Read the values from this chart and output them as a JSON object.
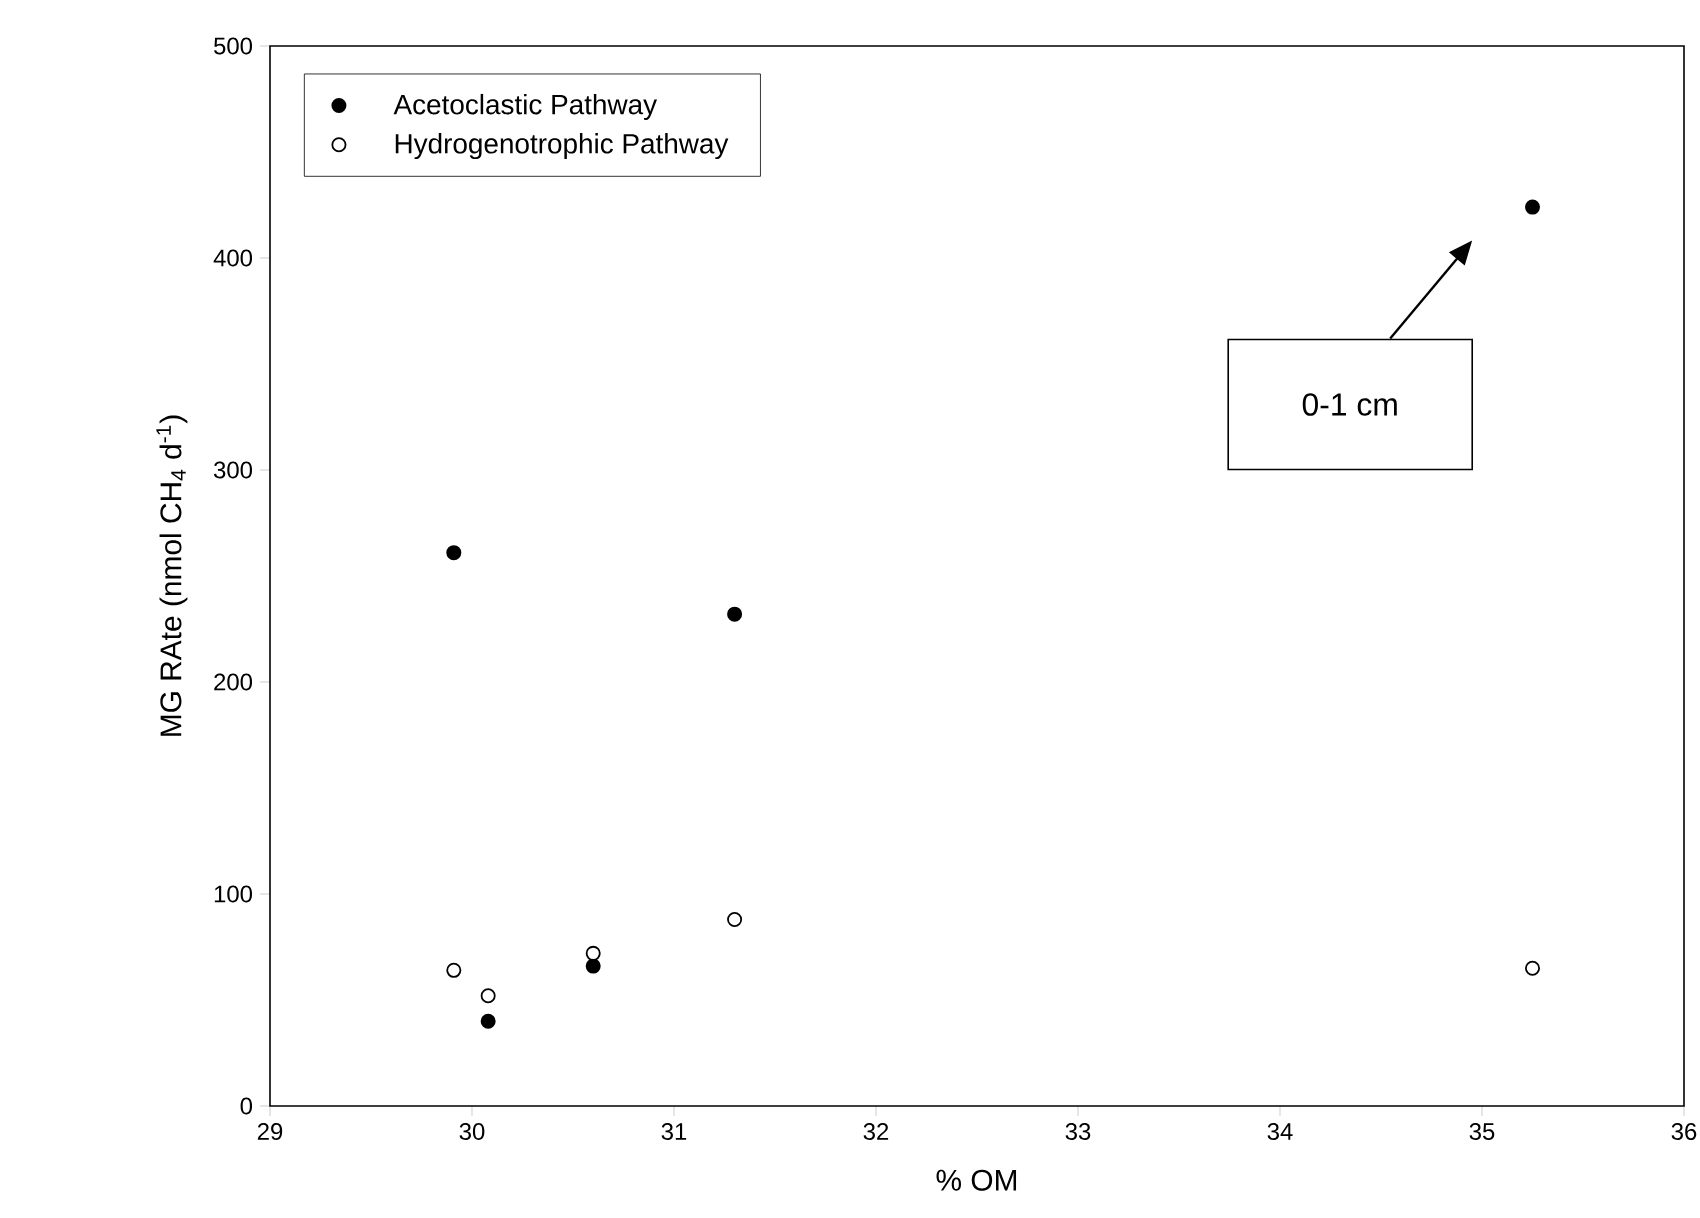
{
  "chart_data": {
    "type": "scatter",
    "xlabel": "% OM",
    "ylabel": "MG RAte (nmol CH$_{4}$ d$^{-1}$)",
    "xlim": [
      29,
      36
    ],
    "ylim": [
      0,
      500
    ],
    "xticks": [
      29,
      30,
      31,
      32,
      33,
      34,
      35,
      36
    ],
    "yticks": [
      0,
      100,
      200,
      300,
      400,
      500
    ],
    "legend": "top left",
    "grid": false,
    "series": [
      {
        "name": "Acetoclastic Pathway",
        "color": "#000000",
        "x": [
          29.91,
          30.08,
          30.6,
          31.3,
          35.25
        ],
        "values": [
          261,
          40,
          66,
          232,
          424
        ]
      },
      {
        "name": "Hydrogenotrophic Pathway",
        "color": "#000000",
        "x": [
          29.91,
          30.08,
          30.6,
          31.3,
          35.25
        ],
        "values": [
          64,
          52,
          72,
          88,
          65
        ]
      }
    ],
    "annotations": [
      "0-1 cm"
    ]
  }
}
